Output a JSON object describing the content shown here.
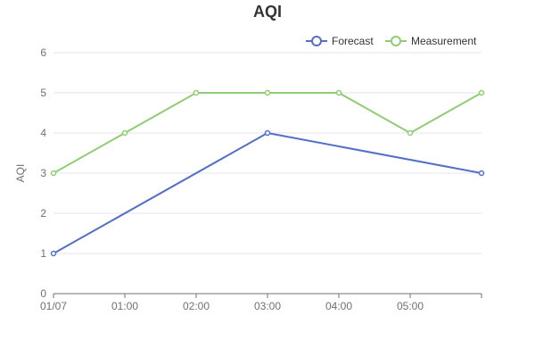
{
  "chart_data": {
    "type": "line",
    "title": "AQI",
    "ylabel": "AQI",
    "xlabel": "",
    "ylim": [
      0,
      6
    ],
    "yticks": [
      "0",
      "1",
      "2",
      "3",
      "4",
      "5",
      "6"
    ],
    "xticks": [
      "01/07",
      "01:00",
      "02:00",
      "03:00",
      "04:00",
      "05:00"
    ],
    "grid": true,
    "legend_position": "top-right",
    "series": [
      {
        "name": "Forecast",
        "color": "#5470c6",
        "points": [
          [
            0,
            1
          ],
          [
            3,
            4
          ],
          [
            6,
            3
          ]
        ]
      },
      {
        "name": "Measurement",
        "color": "#91cc75",
        "points": [
          [
            0,
            3
          ],
          [
            1,
            4
          ],
          [
            2,
            5
          ],
          [
            3,
            5
          ],
          [
            4,
            5
          ],
          [
            5,
            4
          ],
          [
            6,
            5
          ]
        ]
      }
    ]
  }
}
